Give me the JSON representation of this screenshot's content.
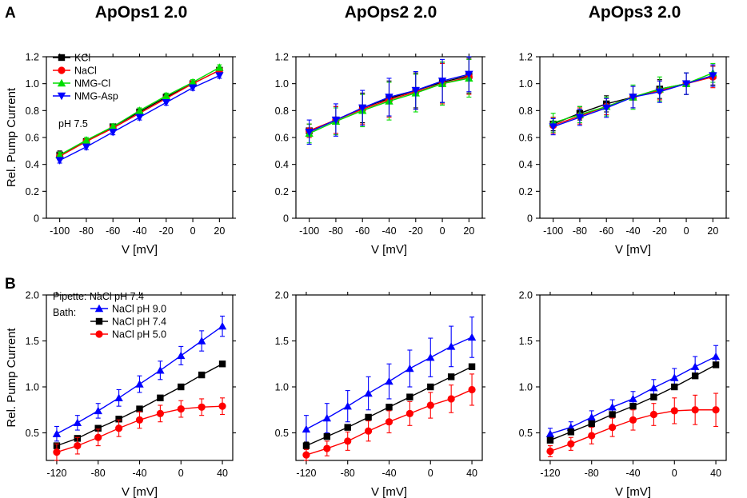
{
  "figure": {
    "row_letters": [
      "A",
      "B"
    ]
  },
  "chart_data": [
    {
      "id": "A1",
      "row": "A",
      "type": "line",
      "title": "ApOps1 2.0",
      "xlabel": "V [mV]",
      "ylabel": "Rel. Pump Current",
      "xlim": [
        -110,
        30
      ],
      "ylim": [
        0,
        1.2
      ],
      "xticks": [
        -100,
        -80,
        -60,
        -40,
        -20,
        0,
        20
      ],
      "yticks": [
        0,
        0.2,
        0.4,
        0.6,
        0.8,
        1.0,
        1.2
      ],
      "ytick_labels": [
        "0",
        "0.2",
        "0.4",
        "0.6",
        "0.8",
        "1.0",
        "1.2"
      ],
      "annotations": [
        "pH 7.5"
      ],
      "show_legend": true,
      "x": [
        -100,
        -80,
        -60,
        -40,
        -20,
        0,
        20
      ],
      "series": [
        {
          "name": "KCl",
          "color": "#000000",
          "marker": "square",
          "values": [
            0.47,
            0.57,
            0.68,
            0.79,
            0.9,
            1.0,
            1.1
          ],
          "errors": [
            0.03,
            0.02,
            0.02,
            0.02,
            0.02,
            0.02,
            0.02
          ]
        },
        {
          "name": "NaCl",
          "color": "#ff0000",
          "marker": "circle",
          "values": [
            0.46,
            0.57,
            0.67,
            0.78,
            0.89,
            1.0,
            1.1
          ],
          "errors": [
            0.02,
            0.02,
            0.02,
            0.02,
            0.02,
            0.02,
            0.02
          ]
        },
        {
          "name": "NMG-Cl",
          "color": "#00dd00",
          "marker": "triangle-up",
          "values": [
            0.47,
            0.58,
            0.68,
            0.8,
            0.91,
            1.01,
            1.12
          ],
          "errors": [
            0.02,
            0.02,
            0.02,
            0.02,
            0.02,
            0.02,
            0.02
          ]
        },
        {
          "name": "NMG-Asp",
          "color": "#0000ff",
          "marker": "triangle-down",
          "values": [
            0.43,
            0.53,
            0.64,
            0.75,
            0.86,
            0.97,
            1.06
          ],
          "errors": [
            0.02,
            0.02,
            0.02,
            0.02,
            0.02,
            0.02,
            0.02
          ]
        }
      ]
    },
    {
      "id": "A2",
      "row": "A",
      "type": "line",
      "title": "ApOps2 2.0",
      "xlabel": "V [mV]",
      "ylabel": "",
      "xlim": [
        -110,
        30
      ],
      "ylim": [
        0,
        1.2
      ],
      "xticks": [
        -100,
        -80,
        -60,
        -40,
        -20,
        0,
        20
      ],
      "yticks": [
        0,
        0.2,
        0.4,
        0.6,
        0.8,
        1.0,
        1.2
      ],
      "ytick_labels": [
        "0",
        "0.2",
        "0.4",
        "0.6",
        "0.8",
        "1.0",
        "1.2"
      ],
      "annotations": [],
      "show_legend": false,
      "x": [
        -100,
        -80,
        -60,
        -40,
        -20,
        0,
        20
      ],
      "series": [
        {
          "name": "KCl",
          "color": "#000000",
          "marker": "square",
          "values": [
            0.65,
            0.73,
            0.82,
            0.89,
            0.95,
            1.01,
            1.06
          ],
          "errors": [
            0.05,
            0.1,
            0.11,
            0.13,
            0.13,
            0.15,
            0.13
          ]
        },
        {
          "name": "NaCl",
          "color": "#ff0000",
          "marker": "circle",
          "values": [
            0.65,
            0.73,
            0.81,
            0.88,
            0.94,
            1.0,
            1.05
          ],
          "errors": [
            0.05,
            0.1,
            0.11,
            0.13,
            0.13,
            0.15,
            0.13
          ]
        },
        {
          "name": "NMG-Cl",
          "color": "#00dd00",
          "marker": "triangle-up",
          "values": [
            0.63,
            0.72,
            0.8,
            0.87,
            0.93,
            1.0,
            1.04
          ],
          "errors": [
            0.07,
            0.1,
            0.12,
            0.14,
            0.14,
            0.16,
            0.14
          ]
        },
        {
          "name": "NMG-Asp",
          "color": "#0000ff",
          "marker": "triangle-down",
          "values": [
            0.64,
            0.73,
            0.82,
            0.9,
            0.95,
            1.02,
            1.07
          ],
          "errors": [
            0.09,
            0.12,
            0.13,
            0.14,
            0.14,
            0.16,
            0.13
          ]
        }
      ]
    },
    {
      "id": "A3",
      "row": "A",
      "type": "line",
      "title": "ApOps3 2.0",
      "xlabel": "V [mV]",
      "ylabel": "",
      "xlim": [
        -110,
        30
      ],
      "ylim": [
        0,
        1.2
      ],
      "xticks": [
        -100,
        -80,
        -60,
        -40,
        -20,
        0,
        20
      ],
      "yticks": [
        0,
        0.2,
        0.4,
        0.6,
        0.8,
        1.0,
        1.2
      ],
      "ytick_labels": [
        "0",
        "0.2",
        "0.4",
        "0.6",
        "0.8",
        "1.0",
        "1.2"
      ],
      "annotations": [],
      "show_legend": false,
      "x": [
        -100,
        -80,
        -60,
        -40,
        -20,
        0,
        20
      ],
      "series": [
        {
          "name": "KCl",
          "color": "#000000",
          "marker": "square",
          "values": [
            0.7,
            0.78,
            0.85,
            0.9,
            0.96,
            1.0,
            1.06
          ],
          "errors": [
            0.05,
            0.05,
            0.06,
            0.08,
            0.07,
            0.08,
            0.07
          ]
        },
        {
          "name": "NaCl",
          "color": "#ff0000",
          "marker": "circle",
          "values": [
            0.69,
            0.76,
            0.83,
            0.9,
            0.95,
            1.0,
            1.05
          ],
          "errors": [
            0.06,
            0.06,
            0.06,
            0.08,
            0.07,
            0.08,
            0.08
          ]
        },
        {
          "name": "NMG-Cl",
          "color": "#00dd00",
          "marker": "triangle-up",
          "values": [
            0.71,
            0.77,
            0.83,
            0.9,
            0.96,
            1.0,
            1.08
          ],
          "errors": [
            0.07,
            0.06,
            0.07,
            0.09,
            0.09,
            0.08,
            0.07
          ]
        },
        {
          "name": "NMG-Asp",
          "color": "#0000ff",
          "marker": "triangle-down",
          "values": [
            0.68,
            0.75,
            0.82,
            0.9,
            0.94,
            1.0,
            1.06
          ],
          "errors": [
            0.06,
            0.06,
            0.07,
            0.08,
            0.08,
            0.08,
            0.08
          ]
        }
      ]
    },
    {
      "id": "B1",
      "row": "B",
      "type": "line",
      "title": "",
      "xlabel": "V [mV]",
      "ylabel": "Rel. Pump Current",
      "xlim": [
        -130,
        50
      ],
      "ylim": [
        0.2,
        2.0
      ],
      "xticks": [
        -120,
        -80,
        -40,
        0,
        40
      ],
      "yticks": [
        0.5,
        1.0,
        1.5,
        2.0
      ],
      "ytick_labels": [
        "0.5",
        "1.0",
        "1.5",
        "2.0"
      ],
      "annotations": [
        "Pipette: NaCl pH 7.4",
        "Bath:"
      ],
      "show_legend": true,
      "x": [
        -120,
        -100,
        -80,
        -60,
        -40,
        -20,
        0,
        20,
        40
      ],
      "series": [
        {
          "name": "NaCl pH 9.0",
          "color": "#0000ff",
          "marker": "triangle-up",
          "values": [
            0.49,
            0.61,
            0.74,
            0.88,
            1.03,
            1.18,
            1.34,
            1.5,
            1.66
          ],
          "errors": [
            0.08,
            0.08,
            0.08,
            0.09,
            0.09,
            0.1,
            0.1,
            0.11,
            0.11
          ]
        },
        {
          "name": "NaCl pH 7.4",
          "color": "#000000",
          "marker": "square",
          "values": [
            0.36,
            0.44,
            0.55,
            0.65,
            0.76,
            0.88,
            1.0,
            1.13,
            1.25
          ],
          "errors": [
            0.01,
            0.01,
            0.01,
            0.01,
            0.01,
            0.01,
            0.01,
            0.01,
            0.01
          ]
        },
        {
          "name": "NaCl pH 5.0",
          "color": "#ff0000",
          "marker": "circle",
          "values": [
            0.29,
            0.36,
            0.45,
            0.55,
            0.64,
            0.71,
            0.76,
            0.78,
            0.79
          ],
          "errors": [
            0.09,
            0.09,
            0.09,
            0.09,
            0.09,
            0.09,
            0.09,
            0.09,
            0.09
          ]
        }
      ]
    },
    {
      "id": "B2",
      "row": "B",
      "type": "line",
      "title": "",
      "xlabel": "V [mV]",
      "ylabel": "",
      "xlim": [
        -130,
        50
      ],
      "ylim": [
        0.2,
        2.0
      ],
      "xticks": [
        -120,
        -80,
        -40,
        0,
        40
      ],
      "yticks": [
        0.5,
        1.0,
        1.5,
        2.0
      ],
      "ytick_labels": [
        "0.5",
        "1.0",
        "1.5",
        "2.0"
      ],
      "annotations": [],
      "show_legend": false,
      "x": [
        -120,
        -100,
        -80,
        -60,
        -40,
        -20,
        0,
        20,
        40
      ],
      "series": [
        {
          "name": "NaCl pH 9.0",
          "color": "#0000ff",
          "marker": "triangle-up",
          "values": [
            0.54,
            0.66,
            0.79,
            0.93,
            1.06,
            1.2,
            1.32,
            1.44,
            1.54
          ],
          "errors": [
            0.15,
            0.16,
            0.17,
            0.18,
            0.19,
            0.2,
            0.21,
            0.22,
            0.22
          ]
        },
        {
          "name": "NaCl pH 7.4",
          "color": "#000000",
          "marker": "square",
          "values": [
            0.36,
            0.46,
            0.56,
            0.67,
            0.78,
            0.89,
            1.0,
            1.11,
            1.22
          ],
          "errors": [
            0.04,
            0.03,
            0.03,
            0.02,
            0.02,
            0.02,
            0.01,
            0.02,
            0.03
          ]
        },
        {
          "name": "NaCl pH 5.0",
          "color": "#ff0000",
          "marker": "circle",
          "values": [
            0.26,
            0.33,
            0.41,
            0.52,
            0.62,
            0.71,
            0.8,
            0.87,
            0.97
          ],
          "errors": [
            0.06,
            0.08,
            0.1,
            0.11,
            0.12,
            0.13,
            0.14,
            0.15,
            0.17
          ]
        }
      ]
    },
    {
      "id": "B3",
      "row": "B",
      "type": "line",
      "title": "",
      "xlabel": "V [mV]",
      "ylabel": "",
      "xlim": [
        -130,
        50
      ],
      "ylim": [
        0.2,
        2.0
      ],
      "xticks": [
        -120,
        -80,
        -40,
        0,
        40
      ],
      "yticks": [
        0.5,
        1.0,
        1.5,
        2.0
      ],
      "ytick_labels": [
        "0.5",
        "1.0",
        "1.5",
        "2.0"
      ],
      "annotations": [],
      "show_legend": false,
      "x": [
        -120,
        -100,
        -80,
        -60,
        -40,
        -20,
        0,
        20,
        40
      ],
      "series": [
        {
          "name": "NaCl pH 9.0",
          "color": "#0000ff",
          "marker": "triangle-up",
          "values": [
            0.49,
            0.56,
            0.67,
            0.78,
            0.87,
            0.99,
            1.1,
            1.22,
            1.33
          ],
          "errors": [
            0.06,
            0.06,
            0.07,
            0.08,
            0.08,
            0.09,
            0.1,
            0.11,
            0.12
          ]
        },
        {
          "name": "NaCl pH 7.4",
          "color": "#000000",
          "marker": "square",
          "values": [
            0.42,
            0.51,
            0.6,
            0.7,
            0.79,
            0.89,
            1.0,
            1.12,
            1.24
          ],
          "errors": [
            0.02,
            0.02,
            0.02,
            0.02,
            0.02,
            0.02,
            0.02,
            0.02,
            0.02
          ]
        },
        {
          "name": "NaCl pH 5.0",
          "color": "#ff0000",
          "marker": "circle",
          "values": [
            0.3,
            0.38,
            0.47,
            0.56,
            0.64,
            0.7,
            0.74,
            0.75,
            0.75
          ],
          "errors": [
            0.06,
            0.07,
            0.09,
            0.1,
            0.11,
            0.12,
            0.14,
            0.16,
            0.18
          ]
        }
      ]
    }
  ]
}
